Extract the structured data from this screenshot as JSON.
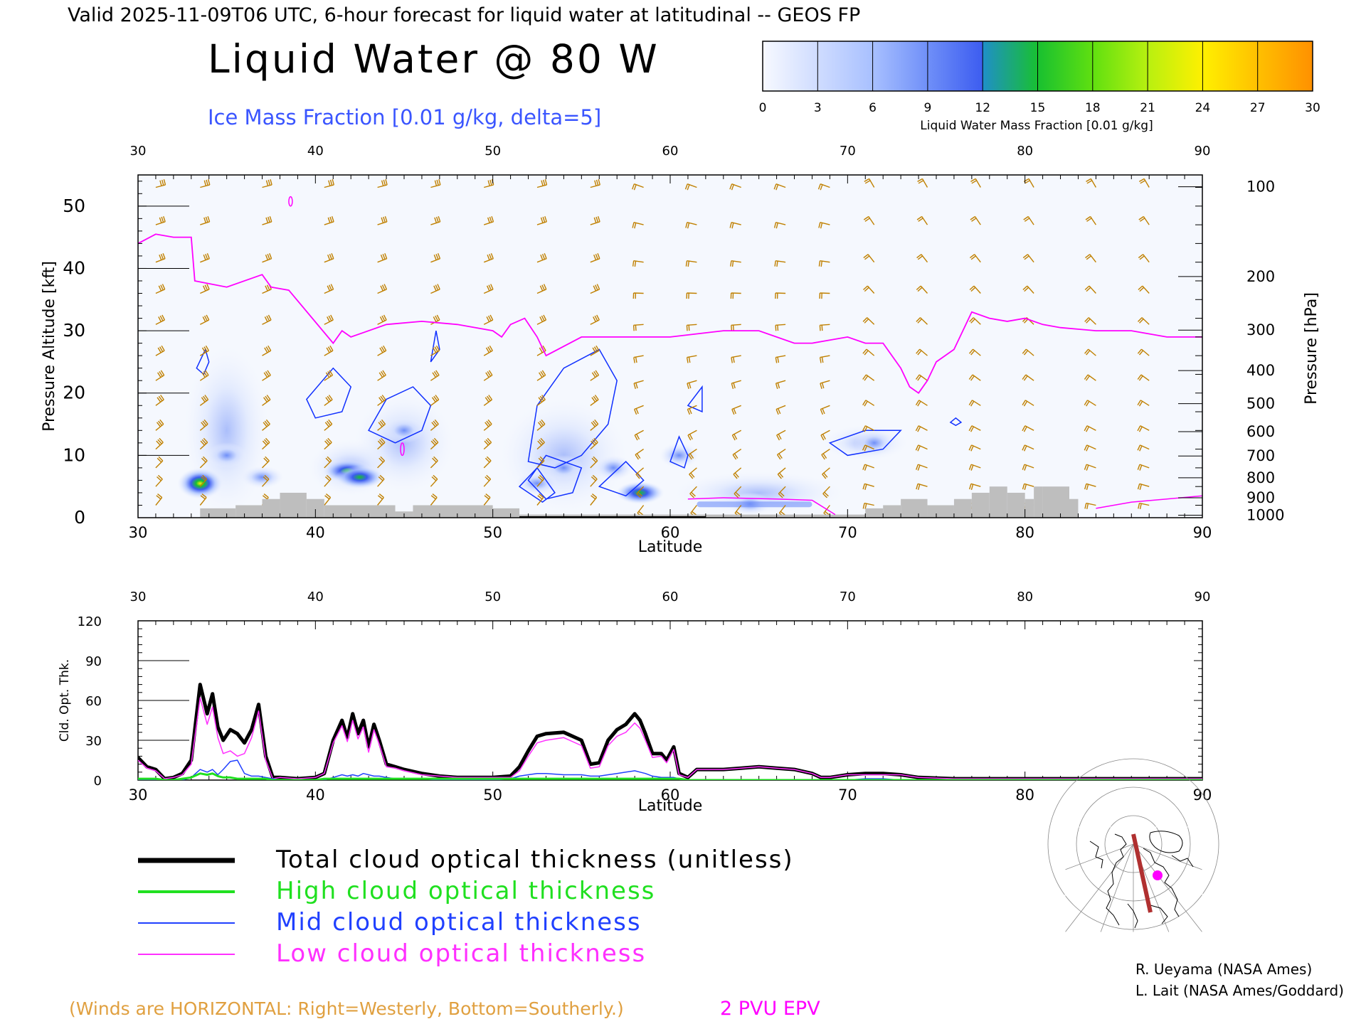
{
  "header": {
    "valid_line": "Valid 2025-11-09T06 UTC, 6-hour forecast for liquid water at latitudinal -- GEOS FP",
    "title": "Liquid Water @ 80 W",
    "subtitle": "Ice Mass Fraction [0.01 g/kg, delta=5]"
  },
  "colorbar": {
    "title": "Liquid Water Mass Fraction [0.01 g/kg]",
    "ticks": [
      "0",
      "3",
      "6",
      "9",
      "12",
      "15",
      "18",
      "21",
      "24",
      "27",
      "30"
    ],
    "colors": [
      "#f7f9ff",
      "#cfdcff",
      "#a8c0ff",
      "#6f8ff8",
      "#3c5cf0",
      "#1f8fc8",
      "#18c030",
      "#60e010",
      "#b8f010",
      "#fff000",
      "#ffc000",
      "#ff9000",
      "#ff5000"
    ]
  },
  "main_chart": {
    "xlabel": "Latitude",
    "ylabel_left": "Pressure Altitude [kft]",
    "ylabel_right": "Pressure [hPa]",
    "x_ticks": [
      "30",
      "40",
      "50",
      "60",
      "70",
      "80",
      "90"
    ],
    "top_x_ticks": [
      "30",
      "40",
      "50",
      "60",
      "70",
      "80",
      "90"
    ],
    "y_ticks_left": [
      "0",
      "10",
      "20",
      "30",
      "40",
      "50"
    ],
    "y_ticks_right": [
      "100",
      "200",
      "300",
      "400",
      "500",
      "600",
      "700",
      "800",
      "900",
      "1000"
    ],
    "epv_color": "#ff00ff",
    "terrain_color": "#bebebe",
    "wind_color": "#c08000"
  },
  "bottom_chart": {
    "xlabel": "Latitude",
    "ylabel": "Cld. Opt. Thk.",
    "x_ticks": [
      "30",
      "40",
      "50",
      "60",
      "70",
      "80",
      "90"
    ],
    "top_x_ticks": [
      "30",
      "40",
      "50",
      "60",
      "70",
      "80",
      "90"
    ],
    "y_ticks": [
      "0",
      "30",
      "60",
      "90",
      "120"
    ]
  },
  "legend": {
    "items": [
      {
        "label": "Total cloud optical thickness (unitless)",
        "color": "#000000"
      },
      {
        "label": "High cloud optical thickness",
        "color": "#20e020"
      },
      {
        "label": "Mid cloud optical thickness",
        "color": "#2040ff"
      },
      {
        "label": "Low cloud optical thickness",
        "color": "#ff30ff"
      }
    ]
  },
  "credits": {
    "line1": "R. Ueyama (NASA Ames)",
    "line2": "L. Lait (NASA Ames/Goddard)"
  },
  "footer": {
    "winds_note": "(Winds are HORIZONTAL: Right=Westerly, Bottom=Southerly.)",
    "epv_label": "2 PVU EPV",
    "winds_color": "#e0a040",
    "epv_color": "#ff00ff"
  },
  "chart_data": [
    {
      "type": "heatmap",
      "xlabel": "Latitude",
      "ylabel": "Pressure Altitude [kft]",
      "xlim": [
        30,
        90
      ],
      "ylim": [
        0,
        55
      ],
      "liquid_water_blobs": [
        {
          "lat": 33.5,
          "alt": 5.5,
          "peak": 28
        },
        {
          "lat": 35.0,
          "alt": 10.0,
          "peak": 5
        },
        {
          "lat": 37.0,
          "alt": 6.5,
          "peak": 6
        },
        {
          "lat": 41.8,
          "alt": 7.5,
          "peak": 14
        },
        {
          "lat": 42.5,
          "alt": 6.5,
          "peak": 12
        },
        {
          "lat": 45.0,
          "alt": 14.0,
          "peak": 3
        },
        {
          "lat": 52.5,
          "alt": 5.5,
          "peak": 7
        },
        {
          "lat": 54.0,
          "alt": 8.0,
          "peak": 5
        },
        {
          "lat": 56.8,
          "alt": 8.0,
          "peak": 5
        },
        {
          "lat": 58.3,
          "alt": 4.0,
          "peak": 16
        },
        {
          "lat": 60.5,
          "alt": 10.0,
          "peak": 4
        },
        {
          "lat": 64.5,
          "alt": 2.2,
          "peak": 8
        },
        {
          "lat": 71.5,
          "alt": 12.0,
          "peak": 3
        }
      ],
      "epv_2pvu_alt": {
        "lat": [
          30,
          31,
          32,
          33,
          33.2,
          35,
          37,
          37.5,
          38.5,
          41,
          41.5,
          42,
          44,
          46,
          48,
          50,
          50.5,
          51,
          51.8,
          52.5,
          53,
          55,
          57,
          60,
          63,
          65,
          66,
          67,
          68,
          70,
          71,
          72,
          73,
          73.5,
          74,
          74.5,
          75,
          76,
          77,
          78,
          79,
          80,
          81,
          82,
          84,
          86,
          88,
          90
        ],
        "alt": [
          44,
          45.5,
          45,
          45,
          38,
          37,
          39,
          37,
          36.5,
          28,
          30,
          29,
          31,
          31.5,
          31,
          30,
          29,
          31,
          32,
          29,
          26,
          29,
          29,
          29,
          30,
          30,
          29,
          28,
          28,
          29,
          28,
          28,
          24,
          21,
          20,
          22,
          25,
          27,
          33,
          32,
          31.5,
          32,
          31,
          30.5,
          30,
          30,
          29,
          29
        ]
      },
      "terrain_kft": {
        "lat": [
          33.5,
          35.5,
          37,
          38,
          39.5,
          40.5,
          44.5,
          45.5,
          50,
          51.5,
          70,
          71,
          72,
          73,
          74.5,
          76,
          77,
          78,
          79,
          80,
          80.5,
          81,
          82.5,
          83
        ],
        "height": [
          1.5,
          2,
          3,
          4,
          3,
          2,
          1,
          2,
          1.5,
          0.5,
          0.5,
          1.5,
          2,
          3,
          2,
          3,
          4,
          5,
          4,
          3,
          5,
          5,
          3,
          0
        ]
      }
    },
    {
      "type": "line",
      "xlabel": "Latitude",
      "ylabel": "Cld. Opt. Thk.",
      "xlim": [
        30,
        90
      ],
      "ylim": [
        0,
        120
      ],
      "x": [
        30,
        30.5,
        31,
        31.5,
        32,
        32.5,
        33,
        33.5,
        33.9,
        34.2,
        34.5,
        34.8,
        35.2,
        35.6,
        36,
        36.4,
        36.8,
        37.2,
        37.6,
        38,
        39,
        40,
        40.5,
        41,
        41.5,
        41.8,
        42.1,
        42.4,
        42.7,
        43,
        43.3,
        43.6,
        44,
        44.5,
        45,
        46,
        47,
        48,
        49,
        50,
        51,
        51.5,
        52,
        52.5,
        53,
        54,
        55,
        55.5,
        56,
        56.5,
        57,
        57.5,
        58,
        58.3,
        58.6,
        59,
        59.5,
        59.8,
        60.2,
        60.5,
        61,
        61.5,
        62,
        63,
        64,
        65,
        66,
        67,
        68,
        68.5,
        69,
        70,
        71,
        72,
        73,
        74,
        76,
        80,
        85,
        90
      ],
      "series": [
        {
          "name": "Total cloud optical thickness (unitless)",
          "values": [
            17,
            10,
            8,
            1,
            2,
            5,
            15,
            72,
            50,
            65,
            40,
            30,
            38,
            35,
            28,
            38,
            57,
            18,
            2,
            2,
            1,
            2,
            5,
            30,
            45,
            32,
            50,
            35,
            45,
            25,
            42,
            30,
            12,
            10,
            8,
            5,
            3,
            2,
            2,
            2,
            3,
            10,
            22,
            33,
            35,
            36,
            30,
            12,
            13,
            30,
            38,
            42,
            50,
            45,
            35,
            20,
            20,
            15,
            25,
            5,
            2,
            8,
            8,
            8,
            9,
            10,
            9,
            8,
            5,
            2,
            2,
            4,
            5,
            5,
            4,
            2,
            1,
            1,
            1,
            1
          ]
        },
        {
          "name": "High cloud optical thickness",
          "values": [
            1,
            1,
            1,
            0,
            0,
            1,
            2,
            5,
            4,
            5,
            3,
            2,
            2,
            1,
            1,
            1,
            1,
            1,
            0,
            0,
            0,
            0,
            1,
            1,
            1,
            1,
            1,
            1,
            1,
            1,
            1,
            1,
            1,
            1,
            1,
            1,
            1,
            1,
            1,
            1,
            1,
            1,
            1,
            1,
            1,
            1,
            1,
            1,
            1,
            1,
            1,
            1,
            1,
            1,
            1,
            1,
            1,
            1,
            1,
            1,
            0,
            0,
            0,
            0,
            0,
            0,
            0,
            0,
            0,
            0,
            0,
            0,
            0,
            0,
            0,
            0,
            0,
            0,
            0,
            0
          ]
        },
        {
          "name": "Mid cloud optical thickness",
          "values": [
            0,
            0,
            0,
            0,
            0,
            0,
            2,
            8,
            6,
            8,
            4,
            8,
            14,
            15,
            5,
            3,
            3,
            2,
            1,
            0,
            0,
            0,
            0,
            2,
            4,
            3,
            4,
            3,
            5,
            4,
            3,
            3,
            2,
            1,
            1,
            1,
            0,
            0,
            0,
            0,
            1,
            3,
            4,
            5,
            5,
            4,
            4,
            3,
            3,
            4,
            5,
            6,
            7,
            6,
            5,
            3,
            2,
            2,
            2,
            1,
            0,
            0,
            0,
            0,
            0,
            0,
            0,
            0,
            0,
            0,
            0,
            0,
            1,
            1,
            0,
            0,
            0,
            0,
            0,
            0
          ]
        },
        {
          "name": "Low cloud optical thickness",
          "values": [
            15,
            9,
            7,
            1,
            2,
            4,
            12,
            62,
            42,
            55,
            32,
            20,
            22,
            18,
            20,
            32,
            52,
            15,
            1,
            2,
            1,
            2,
            5,
            28,
            41,
            29,
            45,
            31,
            40,
            21,
            38,
            27,
            10,
            9,
            7,
            4,
            3,
            2,
            2,
            2,
            2,
            7,
            18,
            28,
            30,
            32,
            26,
            9,
            10,
            26,
            33,
            36,
            43,
            39,
            30,
            17,
            18,
            13,
            23,
            4,
            2,
            8,
            8,
            8,
            9,
            10,
            9,
            8,
            5,
            2,
            2,
            4,
            4,
            4,
            4,
            2,
            1,
            1,
            1,
            1
          ]
        }
      ]
    }
  ]
}
